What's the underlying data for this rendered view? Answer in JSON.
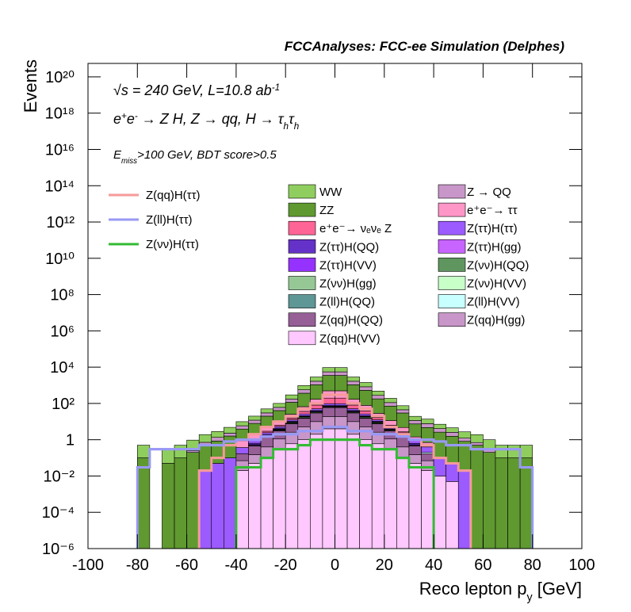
{
  "chart_data": {
    "type": "stacked-histogram",
    "title": "FCCAnalyses: FCC-ee Simulation (Delphes)",
    "ylabel": "Events",
    "xlabel": [
      {
        "t": "Reco lepton p"
      },
      {
        "t": "y",
        "s": "sub"
      },
      {
        "t": " [GeV]"
      }
    ],
    "annotations": [
      [
        {
          "t": "√s = 240 GeV, L=10.8 ab"
        },
        {
          "t": "-1",
          "s": "sup"
        }
      ],
      [
        {
          "t": "e"
        },
        {
          "t": "+",
          "s": "sup"
        },
        {
          "t": "e"
        },
        {
          "t": "-",
          "s": "sup"
        },
        {
          "t": " → Z H, Z  → qq, H  → τ"
        },
        {
          "t": "h",
          "s": "sub"
        },
        {
          "t": "τ"
        },
        {
          "t": "h",
          "s": "sub"
        }
      ],
      [
        {
          "t": "E"
        },
        {
          "t": "miss",
          "s": "sub"
        },
        {
          "t": ">100 GeV, BDT score>0.5"
        }
      ]
    ],
    "log_y": true,
    "xlim": [
      -100,
      100
    ],
    "xticks": [
      -100,
      -80,
      -60,
      -40,
      -20,
      0,
      20,
      40,
      60,
      80,
      100
    ],
    "ylim": [
      1e-06,
      5.5e+20
    ],
    "yticks": [
      {
        "value": 1e-06,
        "label": "10⁻⁶"
      },
      {
        "value": 0.0001,
        "label": "10⁻⁴"
      },
      {
        "value": 0.01,
        "label": "10⁻²"
      },
      1,
      {
        "value": 100,
        "label": "10²"
      },
      {
        "value": 10000,
        "label": "10⁴"
      },
      {
        "value": 1000000,
        "label": "10⁶"
      },
      {
        "value": 100000000,
        "label": "10⁸"
      },
      {
        "value": 10000000000.0,
        "label": "10¹⁰"
      },
      {
        "value": 1000000000000.0,
        "label": "10¹²"
      },
      {
        "value": 100000000000000.0,
        "label": "10¹⁴"
      },
      {
        "value": 1e+16,
        "label": "10¹⁶"
      },
      {
        "value": 1e+18,
        "label": "10¹⁸"
      },
      {
        "value": 1e+20,
        "label": "10²⁰"
      }
    ],
    "bins": [
      -100,
      -95,
      -90,
      -85,
      -80,
      -75,
      -70,
      -65,
      -60,
      -55,
      -50,
      -45,
      -40,
      -35,
      -30,
      -25,
      -20,
      -15,
      -10,
      -5,
      0,
      5,
      10,
      15,
      20,
      25,
      30,
      35,
      40,
      45,
      50,
      55,
      60,
      65,
      70,
      75,
      80,
      85,
      90,
      95,
      100
    ],
    "series": [
      {
        "name": "WW",
        "color": "#8fce5e",
        "values": [
          0,
          0,
          0,
          0,
          0.4,
          0,
          0.25,
          0.4,
          0.7,
          1.2,
          1.5,
          2.5,
          4,
          8,
          20,
          40,
          120,
          400,
          1200,
          4000,
          4000,
          1200,
          600,
          200,
          80,
          30,
          8,
          6,
          3,
          2,
          1.5,
          1.2,
          0.7,
          0.4,
          0.4,
          0.4,
          0,
          0,
          0,
          0
        ]
      },
      {
        "name": "Z → QQ",
        "color": "#c896c8",
        "values": [
          0,
          0,
          0,
          0,
          0,
          0,
          0,
          0,
          0.05,
          0.2,
          0.5,
          0.7,
          2,
          4,
          10,
          20,
          60,
          200,
          600,
          2000,
          2000,
          600,
          300,
          100,
          40,
          15,
          4,
          3,
          1.5,
          1,
          0.4,
          0.2,
          0.1,
          0,
          0,
          0,
          0,
          0,
          0,
          0
        ]
      },
      {
        "name": "ZZ",
        "color": "#5f9930",
        "values": [
          0,
          0,
          0,
          0,
          0.1,
          0,
          0.05,
          0.1,
          0.2,
          0.5,
          0.8,
          1.5,
          3,
          6,
          15,
          30,
          90,
          300,
          900,
          3000,
          3000,
          900,
          450,
          150,
          60,
          25,
          6,
          4,
          2.5,
          1.5,
          0.8,
          0.5,
          0.2,
          0.1,
          0.1,
          0.1,
          0,
          0,
          0,
          0
        ]
      },
      {
        "name": "e⁺e⁻→ ττ",
        "color": "#ff96c8",
        "values": [
          0,
          0,
          0,
          0,
          0,
          0,
          0,
          0,
          0,
          0,
          0,
          0,
          0.5,
          1,
          2,
          4,
          10,
          30,
          90,
          300,
          300,
          90,
          40,
          12,
          5,
          2,
          0.5,
          0.3,
          0,
          0,
          0,
          0,
          0,
          0,
          0,
          0,
          0,
          0,
          0,
          0
        ]
      },
      {
        "name": "e⁺e⁻→ νₑνₑ Z",
        "color": "#ff6496",
        "values": [
          0,
          0,
          0,
          0,
          0,
          0,
          0,
          0,
          0,
          0,
          0,
          0,
          0,
          0,
          0.5,
          1,
          3,
          10,
          30,
          100,
          100,
          30,
          12,
          4,
          1,
          0.3,
          0,
          0,
          0,
          0,
          0,
          0,
          0,
          0,
          0,
          0,
          0,
          0,
          0,
          0
        ]
      },
      {
        "name": "Z(ττ)H(ττ)",
        "color": "#9c5bff",
        "values": [
          0,
          0,
          0,
          0,
          0,
          0,
          0,
          0,
          0,
          0.02,
          0.05,
          0.1,
          0.2,
          0.3,
          0.5,
          1,
          2,
          5,
          10,
          20,
          20,
          10,
          5,
          2,
          1,
          0.5,
          0.3,
          0.2,
          0.1,
          0.05,
          0.02,
          0,
          0,
          0,
          0,
          0,
          0,
          0,
          0,
          0
        ]
      },
      {
        "name": "Z(ττ)H(QQ)",
        "color": "#6432c8",
        "values": [
          0,
          0,
          0,
          0,
          0,
          0,
          0,
          0,
          0,
          0,
          0,
          0,
          0,
          0.1,
          0.2,
          0.5,
          1,
          2,
          4,
          6,
          6,
          4,
          2,
          1,
          0.5,
          0.2,
          0.1,
          0,
          0,
          0,
          0,
          0,
          0,
          0,
          0,
          0,
          0,
          0,
          0,
          0
        ]
      },
      {
        "name": "Z(ττ)H(gg)",
        "color": "#c864ff",
        "values": [
          0,
          0,
          0,
          0,
          0,
          0,
          0,
          0,
          0,
          0,
          0,
          0,
          0,
          0,
          0.05,
          0.1,
          0.3,
          0.6,
          1,
          2,
          2,
          1,
          0.6,
          0.3,
          0.1,
          0.05,
          0,
          0,
          0,
          0,
          0,
          0,
          0,
          0,
          0,
          0,
          0,
          0,
          0,
          0
        ]
      },
      {
        "name": "Z(ττ)H(VV)",
        "color": "#9632ff",
        "values": [
          0,
          0,
          0,
          0,
          0,
          0,
          0,
          0,
          0,
          0,
          0,
          0,
          0,
          0.05,
          0.1,
          0.2,
          0.5,
          1,
          2,
          3,
          3,
          2,
          1,
          0.5,
          0.2,
          0.1,
          0.05,
          0,
          0,
          0,
          0,
          0,
          0,
          0,
          0,
          0,
          0,
          0,
          0,
          0
        ]
      },
      {
        "name": "Z(νν)H(QQ)",
        "color": "#5f965f",
        "values": [
          0,
          0,
          0,
          0,
          0,
          0,
          0,
          0,
          0,
          0,
          0,
          0,
          0,
          0,
          0.1,
          0.3,
          0.8,
          2,
          3,
          5,
          5,
          3,
          2,
          0.8,
          0.3,
          0.1,
          0,
          0,
          0,
          0,
          0,
          0,
          0,
          0,
          0,
          0,
          0,
          0,
          0,
          0
        ]
      },
      {
        "name": "Z(νν)H(gg)",
        "color": "#96c896",
        "values": [
          0,
          0,
          0,
          0,
          0,
          0,
          0,
          0,
          0,
          0,
          0,
          0,
          0,
          0,
          0.02,
          0.05,
          0.1,
          0.2,
          0.4,
          0.6,
          0.6,
          0.4,
          0.2,
          0.1,
          0.05,
          0.02,
          0,
          0,
          0,
          0,
          0,
          0,
          0,
          0,
          0,
          0,
          0,
          0,
          0,
          0
        ]
      },
      {
        "name": "Z(νν)H(VV)",
        "color": "#c8ffc8",
        "values": [
          0,
          0,
          0,
          0,
          0,
          0,
          0,
          0,
          0,
          0,
          0,
          0,
          0,
          0,
          0.02,
          0.05,
          0.1,
          0.2,
          0.3,
          0.5,
          0.5,
          0.3,
          0.2,
          0.1,
          0.05,
          0.02,
          0,
          0,
          0,
          0,
          0,
          0,
          0,
          0,
          0,
          0,
          0,
          0,
          0,
          0
        ]
      },
      {
        "name": "Z(ll)H(QQ)",
        "color": "#5f9696",
        "values": [
          0,
          0,
          0,
          0,
          0,
          0,
          0,
          0,
          0,
          0,
          0,
          0,
          0,
          0.01,
          0.02,
          0.05,
          0.1,
          0.2,
          0.1,
          0.3,
          0.3,
          0.2,
          0.1,
          0.05,
          0.02,
          0.01,
          0,
          0,
          0,
          0,
          0,
          0,
          0,
          0,
          0,
          0,
          0,
          0,
          0,
          0
        ]
      },
      {
        "name": "Z(ll)H(VV)",
        "color": "#c8ffff",
        "values": [
          0,
          0,
          0,
          0,
          0,
          0,
          0,
          0,
          0,
          0,
          0,
          0,
          0,
          0.03,
          0.03,
          0.03,
          0.05,
          0.1,
          0.1,
          0.1,
          0.1,
          0.1,
          0.1,
          0.05,
          0.03,
          0.03,
          0.03,
          0.03,
          0,
          0,
          0,
          0,
          0,
          0,
          0,
          0,
          0,
          0,
          0,
          0
        ]
      },
      {
        "name": "Z(qq)H(QQ)",
        "color": "#965f96",
        "values": [
          0,
          0,
          0,
          0,
          0,
          0,
          0,
          0,
          0,
          0,
          0,
          0,
          0.1,
          0.3,
          1,
          2,
          5,
          10,
          20,
          40,
          40,
          20,
          10,
          5,
          2,
          1,
          0.3,
          0.1,
          0,
          0,
          0,
          0,
          0,
          0,
          0,
          0,
          0,
          0,
          0,
          0
        ]
      },
      {
        "name": "Z(qq)H(gg)",
        "color": "#c896c8",
        "values": [
          0,
          0,
          0,
          0,
          0,
          0,
          0,
          0,
          0,
          0,
          0,
          0,
          0.05,
          0.1,
          0.3,
          0.8,
          2,
          4,
          8,
          15,
          15,
          8,
          4,
          2,
          0.8,
          0.3,
          0.1,
          0.05,
          0,
          0,
          0,
          0,
          0,
          0,
          0,
          0,
          0,
          0,
          0,
          0
        ]
      },
      {
        "name": "Z(qq)H(VV)",
        "color": "#ffc8ff",
        "values": [
          0,
          0,
          0,
          0,
          0,
          0,
          0,
          0,
          0,
          0,
          0,
          0,
          0.02,
          0.05,
          0.1,
          0.3,
          0.6,
          1,
          2,
          4,
          4,
          2,
          1,
          0.6,
          0.3,
          0.1,
          0.05,
          0.02,
          0.01,
          0.005,
          0,
          0,
          0,
          0,
          0,
          0,
          0,
          0,
          0,
          0
        ]
      }
    ],
    "lines": [
      {
        "name": "Z(qq)H(ττ)",
        "color": "#f59a9a",
        "values": [
          null,
          null,
          null,
          null,
          null,
          null,
          null,
          null,
          null,
          0.02,
          0.1,
          0.5,
          1,
          2,
          5,
          10,
          20,
          50,
          100,
          300,
          300,
          100,
          50,
          20,
          5,
          2,
          1,
          0.5,
          0.1,
          0.05,
          0.02,
          null,
          null,
          null,
          null,
          null,
          null,
          null,
          null,
          null
        ]
      },
      {
        "name": "Z(ll)H(ττ)",
        "color": "#9999f5",
        "values": [
          null,
          null,
          null,
          null,
          0.03,
          0.3,
          0.3,
          0.3,
          0.3,
          0.5,
          0.5,
          0.8,
          1,
          1,
          1.5,
          2,
          2,
          3,
          3,
          5,
          5,
          3,
          3,
          2,
          2,
          1.5,
          1,
          1,
          0.8,
          0.5,
          0.5,
          0.3,
          0.3,
          0.3,
          0.3,
          0.03,
          null,
          null,
          null,
          null
        ]
      },
      {
        "name": "Z(νν)H(ττ)",
        "color": "#33bb33",
        "values": [
          null,
          null,
          null,
          null,
          null,
          null,
          null,
          null,
          null,
          null,
          null,
          null,
          0.03,
          0.03,
          0.1,
          0.3,
          0.3,
          0.5,
          1,
          1,
          1,
          1,
          0.5,
          0.3,
          0.3,
          0.1,
          0.03,
          0.03,
          null,
          null,
          null,
          null,
          null,
          null,
          null,
          null,
          null,
          null,
          null,
          null
        ]
      }
    ]
  }
}
